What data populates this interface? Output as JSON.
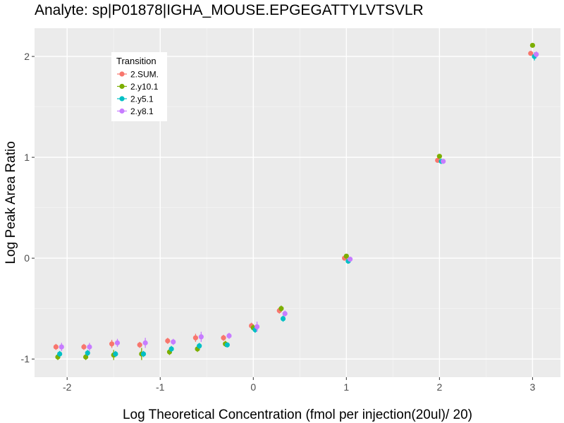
{
  "chart_data": {
    "type": "scatter",
    "title": "Analyte: sp|P01878|IGHA_MOUSE.EPGEGATTYLVTSVLR",
    "xlabel": "Log Theoretical Concentration (fmol per injection(20ul)/ 20)",
    "ylabel": "Log Peak Area Ratio",
    "xlim": [
      -2.35,
      3.3
    ],
    "ylim": [
      -1.18,
      2.28
    ],
    "x_ticks": [
      -2,
      -1,
      0,
      1,
      2,
      3
    ],
    "x_tick_labels": [
      "-2",
      "-1",
      "0",
      "1",
      "2",
      "3"
    ],
    "y_ticks": [
      -1,
      0,
      1,
      2
    ],
    "y_tick_labels": [
      "-1",
      "0",
      "1",
      "2"
    ],
    "x_minor_ticks": [
      -1.5,
      -0.5,
      0.5,
      1.5,
      2.5
    ],
    "y_minor_ticks": [
      -0.5,
      0.5,
      1.5
    ],
    "grid": true,
    "background": "#ebebeb",
    "legend": {
      "title": "Transition",
      "position": "top-left"
    },
    "series": [
      {
        "name": "2.SUM.",
        "color": "#f8766d",
        "points": [
          {
            "x": -2.12,
            "y": -0.88,
            "err": 0.03
          },
          {
            "x": -1.82,
            "y": -0.88,
            "err": 0.03
          },
          {
            "x": -1.52,
            "y": -0.85,
            "err": 0.04
          },
          {
            "x": -1.22,
            "y": -0.86,
            "err": 0.03
          },
          {
            "x": -0.92,
            "y": -0.82,
            "err": 0.03
          },
          {
            "x": -0.62,
            "y": -0.79,
            "err": 0.04
          },
          {
            "x": -0.32,
            "y": -0.79,
            "err": 0.03
          },
          {
            "x": -0.02,
            "y": -0.67,
            "err": 0.03
          },
          {
            "x": 0.28,
            "y": -0.52,
            "err": 0.03
          },
          {
            "x": 0.98,
            "y": 0.0,
            "err": 0.02
          },
          {
            "x": 1.98,
            "y": 0.97,
            "err": 0.02
          },
          {
            "x": 2.98,
            "y": 2.03,
            "err": 0.02
          }
        ]
      },
      {
        "name": "2.y10.1",
        "color": "#7cae00",
        "points": [
          {
            "x": -2.1,
            "y": -0.98,
            "err": 0.03
          },
          {
            "x": -1.8,
            "y": -0.98,
            "err": 0.03
          },
          {
            "x": -1.5,
            "y": -0.96,
            "err": 0.05
          },
          {
            "x": -1.2,
            "y": -0.95,
            "err": 0.06
          },
          {
            "x": -0.9,
            "y": -0.93,
            "err": 0.03
          },
          {
            "x": -0.6,
            "y": -0.9,
            "err": 0.03
          },
          {
            "x": -0.3,
            "y": -0.85,
            "err": 0.03
          },
          {
            "x": 0.0,
            "y": -0.69,
            "err": 0.03
          },
          {
            "x": 0.3,
            "y": -0.5,
            "err": 0.03
          },
          {
            "x": 1.0,
            "y": 0.02,
            "err": 0.02
          },
          {
            "x": 2.0,
            "y": 1.01,
            "err": 0.02
          },
          {
            "x": 3.0,
            "y": 2.11,
            "err": 0.02
          }
        ]
      },
      {
        "name": "2.y5.1",
        "color": "#00bfc4",
        "points": [
          {
            "x": -2.08,
            "y": -0.95,
            "err": 0.03
          },
          {
            "x": -1.78,
            "y": -0.94,
            "err": 0.03
          },
          {
            "x": -1.48,
            "y": -0.95,
            "err": 0.03
          },
          {
            "x": -1.18,
            "y": -0.95,
            "err": 0.03
          },
          {
            "x": -0.88,
            "y": -0.9,
            "err": 0.03
          },
          {
            "x": -0.58,
            "y": -0.87,
            "err": 0.03
          },
          {
            "x": -0.28,
            "y": -0.86,
            "err": 0.02
          },
          {
            "x": 0.02,
            "y": -0.71,
            "err": 0.03
          },
          {
            "x": 0.32,
            "y": -0.6,
            "err": 0.03
          },
          {
            "x": 1.02,
            "y": -0.03,
            "err": 0.02
          },
          {
            "x": 2.02,
            "y": 0.96,
            "err": 0.02
          },
          {
            "x": 3.02,
            "y": 2.0,
            "err": 0.04
          }
        ]
      },
      {
        "name": "2.y8.1",
        "color": "#c77cff",
        "points": [
          {
            "x": -2.06,
            "y": -0.88,
            "err": 0.04
          },
          {
            "x": -1.76,
            "y": -0.88,
            "err": 0.04
          },
          {
            "x": -1.46,
            "y": -0.84,
            "err": 0.04
          },
          {
            "x": -1.16,
            "y": -0.84,
            "err": 0.05
          },
          {
            "x": -0.86,
            "y": -0.83,
            "err": 0.03
          },
          {
            "x": -0.56,
            "y": -0.78,
            "err": 0.05
          },
          {
            "x": -0.26,
            "y": -0.77,
            "err": 0.03
          },
          {
            "x": 0.04,
            "y": -0.68,
            "err": 0.05
          },
          {
            "x": 0.34,
            "y": -0.55,
            "err": 0.03
          },
          {
            "x": 1.04,
            "y": -0.01,
            "err": 0.02
          },
          {
            "x": 2.04,
            "y": 0.96,
            "err": 0.02
          },
          {
            "x": 3.04,
            "y": 2.02,
            "err": 0.03
          }
        ]
      }
    ]
  }
}
